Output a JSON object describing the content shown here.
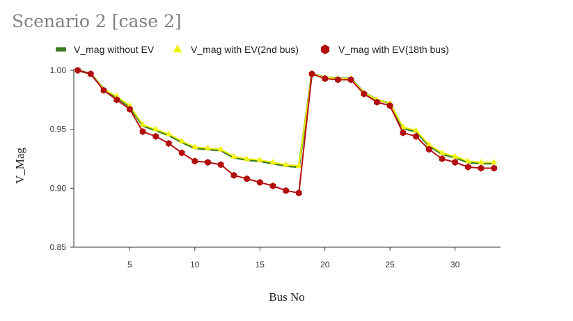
{
  "chart_data": {
    "type": "line",
    "title": "Scenario 2 [case 2]",
    "xlabel": "Bus No",
    "ylabel": "V_Mag",
    "xlim": [
      0.7,
      33.5
    ],
    "ylim": [
      0.85,
      1.0
    ],
    "xticks": [
      5,
      10,
      15,
      20,
      25,
      30
    ],
    "xtick_labels": [
      "5",
      "10",
      "15",
      "20",
      "25",
      "30"
    ],
    "yticks": [
      0.85,
      0.9,
      0.95,
      1.0
    ],
    "ytick_labels": [
      "0.85",
      "0.90",
      "0.95",
      "1.00"
    ],
    "legend_position": "top",
    "x": [
      1,
      2,
      3,
      4,
      5,
      6,
      7,
      8,
      9,
      10,
      11,
      12,
      13,
      14,
      15,
      16,
      17,
      18,
      19,
      20,
      21,
      22,
      23,
      24,
      25,
      26,
      27,
      28,
      29,
      30,
      31,
      32,
      33
    ],
    "series": [
      {
        "name": "V_mag without EV",
        "color": "#3a7d1e",
        "marker": "none",
        "values": [
          1.0,
          0.997,
          0.984,
          0.977,
          0.969,
          0.953,
          0.949,
          0.945,
          0.939,
          0.934,
          0.933,
          0.932,
          0.926,
          0.924,
          0.923,
          0.921,
          0.919,
          0.918,
          0.997,
          0.994,
          0.993,
          0.993,
          0.981,
          0.975,
          0.972,
          0.951,
          0.948,
          0.936,
          0.929,
          0.926,
          0.922,
          0.921,
          0.921
        ]
      },
      {
        "name": "V_mag with EV(2nd bus)",
        "color": "#f2f20a",
        "marker": "triangle",
        "values": [
          1.0,
          0.997,
          0.984,
          0.978,
          0.97,
          0.954,
          0.95,
          0.946,
          0.94,
          0.935,
          0.934,
          0.933,
          0.927,
          0.925,
          0.924,
          0.922,
          0.92,
          0.919,
          0.997,
          0.994,
          0.993,
          0.993,
          0.981,
          0.975,
          0.972,
          0.952,
          0.949,
          0.937,
          0.93,
          0.927,
          0.923,
          0.922,
          0.922
        ]
      },
      {
        "name": "V_mag with EV(18th bus)",
        "color": "#b30e0e",
        "marker": "hexagon",
        "values": [
          1.0,
          0.997,
          0.983,
          0.975,
          0.967,
          0.948,
          0.944,
          0.938,
          0.93,
          0.923,
          0.922,
          0.92,
          0.911,
          0.908,
          0.905,
          0.902,
          0.898,
          0.896,
          0.997,
          0.993,
          0.992,
          0.992,
          0.98,
          0.973,
          0.97,
          0.947,
          0.944,
          0.933,
          0.925,
          0.922,
          0.918,
          0.917,
          0.917
        ]
      }
    ]
  }
}
